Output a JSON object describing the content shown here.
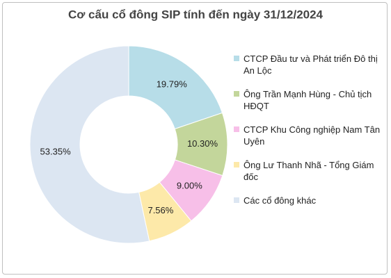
{
  "chart_data": {
    "type": "donut",
    "title": "Cơ cấu cổ đông SIP tính đến ngày 31/12/2024",
    "categories": [
      "CTCP Đầu tư và Phát triển Đô thị An Lộc",
      "Ông Trần Mạnh Hùng - Chủ tịch HĐQT",
      "CTCP Khu Công nghiệp Nam Tân Uyên",
      "Ông Lư Thanh Nhã - Tổng Giám đốc",
      "Các cổ đông khác"
    ],
    "values": [
      19.79,
      10.3,
      9.0,
      7.56,
      53.35
    ],
    "value_labels": [
      "19.79%",
      "10.30%",
      "9.00%",
      "7.56%",
      "53.35%"
    ],
    "colors": [
      "#b7dde8",
      "#c3d69b",
      "#f7bfe8",
      "#fde9a9",
      "#dce6f2"
    ],
    "legend": "right"
  }
}
